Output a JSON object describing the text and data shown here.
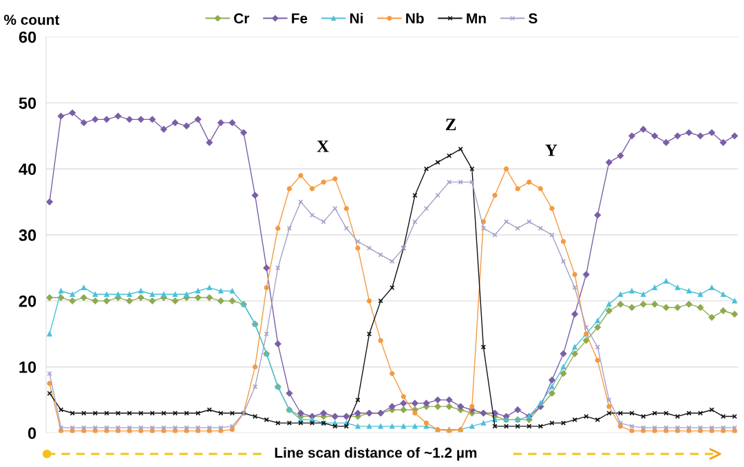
{
  "chart_data": {
    "type": "line",
    "ylabel": "% count",
    "xlabel": "Line scan distance of ~1.2 µm",
    "annotations": [
      "X",
      "Z",
      "Y"
    ],
    "categories": [
      null,
      null,
      null,
      null,
      null,
      null,
      null,
      null,
      null,
      null,
      null,
      null,
      null,
      null,
      null,
      null,
      null,
      null,
      null,
      null,
      null,
      null,
      null,
      null,
      null,
      null,
      null,
      null,
      null,
      null,
      null,
      null,
      null,
      null,
      null,
      null,
      null,
      null,
      null,
      null,
      null,
      null,
      null,
      null,
      null,
      null,
      null,
      null,
      null,
      null,
      null,
      null,
      null,
      null,
      null,
      null,
      null,
      null,
      null,
      null,
      null
    ],
    "series": [
      {
        "name": "Cr",
        "color": "#8faa4f",
        "marker": "diamond",
        "values": [
          20.5,
          20.5,
          20,
          20.5,
          20,
          20,
          20.5,
          20,
          20.5,
          20,
          20.5,
          20,
          20.5,
          20.5,
          20.5,
          20,
          20,
          19.5,
          16.5,
          12,
          7,
          3.5,
          2.5,
          2.5,
          2.5,
          2.5,
          2.5,
          2.5,
          3,
          3,
          3.5,
          3.5,
          3.5,
          4,
          4,
          4,
          3.5,
          3,
          3,
          2.5,
          2,
          2,
          2,
          4,
          6,
          9,
          12,
          14,
          16,
          18.5,
          19.5,
          19,
          19.5,
          19.5,
          19,
          19,
          19.5,
          19,
          17.5,
          18.5,
          18
        ]
      },
      {
        "name": "Fe",
        "color": "#7b5ea7",
        "marker": "diamond",
        "values": [
          35,
          48,
          48.5,
          47,
          47.5,
          47.5,
          48,
          47.5,
          47.5,
          47.5,
          46,
          47,
          46.5,
          47.5,
          44,
          47,
          47,
          45.5,
          36,
          25,
          13.5,
          6,
          3,
          2.5,
          3,
          2.5,
          2.5,
          3,
          3,
          3,
          4,
          4.5,
          4.5,
          4.5,
          5,
          5,
          4,
          3.5,
          3,
          3,
          2.5,
          3.5,
          2.5,
          4,
          8,
          12,
          18,
          24,
          33,
          41,
          42,
          45,
          46,
          45,
          44,
          45,
          45.5,
          45,
          45.5,
          44,
          45
        ]
      },
      {
        "name": "Ni",
        "color": "#4bc0d9",
        "marker": "triangle",
        "values": [
          15,
          21.5,
          21,
          22,
          21,
          21,
          21,
          21,
          21.5,
          21,
          21,
          21,
          21,
          21.5,
          22,
          21.5,
          21.5,
          19.5,
          16.5,
          12,
          7,
          3.5,
          2,
          2,
          1.5,
          1.5,
          1.5,
          1,
          1,
          1,
          1,
          1,
          1,
          1,
          0.5,
          0.5,
          0.5,
          1,
          1.5,
          2,
          2,
          2,
          2.5,
          4.5,
          7,
          10,
          13,
          15,
          17,
          19.5,
          21,
          21.5,
          21,
          22,
          23,
          22,
          21.5,
          21,
          22,
          21,
          20
        ]
      },
      {
        "name": "Nb",
        "color": "#f39a40",
        "marker": "circle",
        "values": [
          7.5,
          0.3,
          0.3,
          0.3,
          0.3,
          0.3,
          0.3,
          0.3,
          0.3,
          0.3,
          0.3,
          0.3,
          0.3,
          0.3,
          0.3,
          0.3,
          0.5,
          3,
          10,
          22,
          31,
          37,
          39,
          37,
          38,
          38.5,
          34,
          28,
          20,
          14,
          9,
          5.5,
          3,
          1.5,
          0.5,
          0.3,
          0.5,
          4,
          32,
          36,
          40,
          37,
          38,
          37,
          34,
          29,
          24,
          15,
          11,
          4,
          1,
          0.3,
          0.3,
          0.3,
          0.3,
          0.3,
          0.3,
          0.3,
          0.3,
          0.3,
          0.3
        ]
      },
      {
        "name": "Mn",
        "color": "#111111",
        "marker": "cross",
        "values": [
          6,
          3.5,
          3,
          3,
          3,
          3,
          3,
          3,
          3,
          3,
          3,
          3,
          3,
          3,
          3.5,
          3,
          3,
          3,
          2.5,
          2,
          1.5,
          1.5,
          1.5,
          1.5,
          1.5,
          1,
          1,
          5,
          15,
          20,
          22,
          28,
          36,
          40,
          41,
          42,
          43,
          40,
          13,
          1,
          1,
          1,
          1,
          1,
          1.5,
          1.5,
          2,
          2.5,
          2,
          3,
          3,
          3,
          2.5,
          3,
          3,
          2.5,
          3,
          3,
          3.5,
          2.5,
          2.5
        ]
      },
      {
        "name": "S",
        "color": "#a6a0c8",
        "marker": "cross",
        "values": [
          9,
          0.8,
          0.8,
          0.8,
          0.8,
          0.8,
          0.8,
          0.8,
          0.8,
          0.8,
          0.8,
          0.8,
          0.8,
          0.8,
          0.8,
          0.8,
          1,
          3,
          7,
          15,
          25,
          31,
          35,
          33,
          32,
          34,
          31,
          29,
          28,
          27,
          26,
          28,
          32,
          34,
          36,
          38,
          38,
          38,
          31,
          30,
          32,
          31,
          32,
          31,
          30,
          26,
          22,
          16,
          13,
          5,
          1.5,
          1,
          0.8,
          0.8,
          0.8,
          0.8,
          0.8,
          0.8,
          0.8,
          0.8,
          0.8
        ]
      }
    ],
    "ylim": [
      0,
      60
    ],
    "yticks": [
      0,
      10,
      20,
      30,
      40,
      50,
      60
    ],
    "grid": "y",
    "legend": "top",
    "line_style": "solid"
  }
}
